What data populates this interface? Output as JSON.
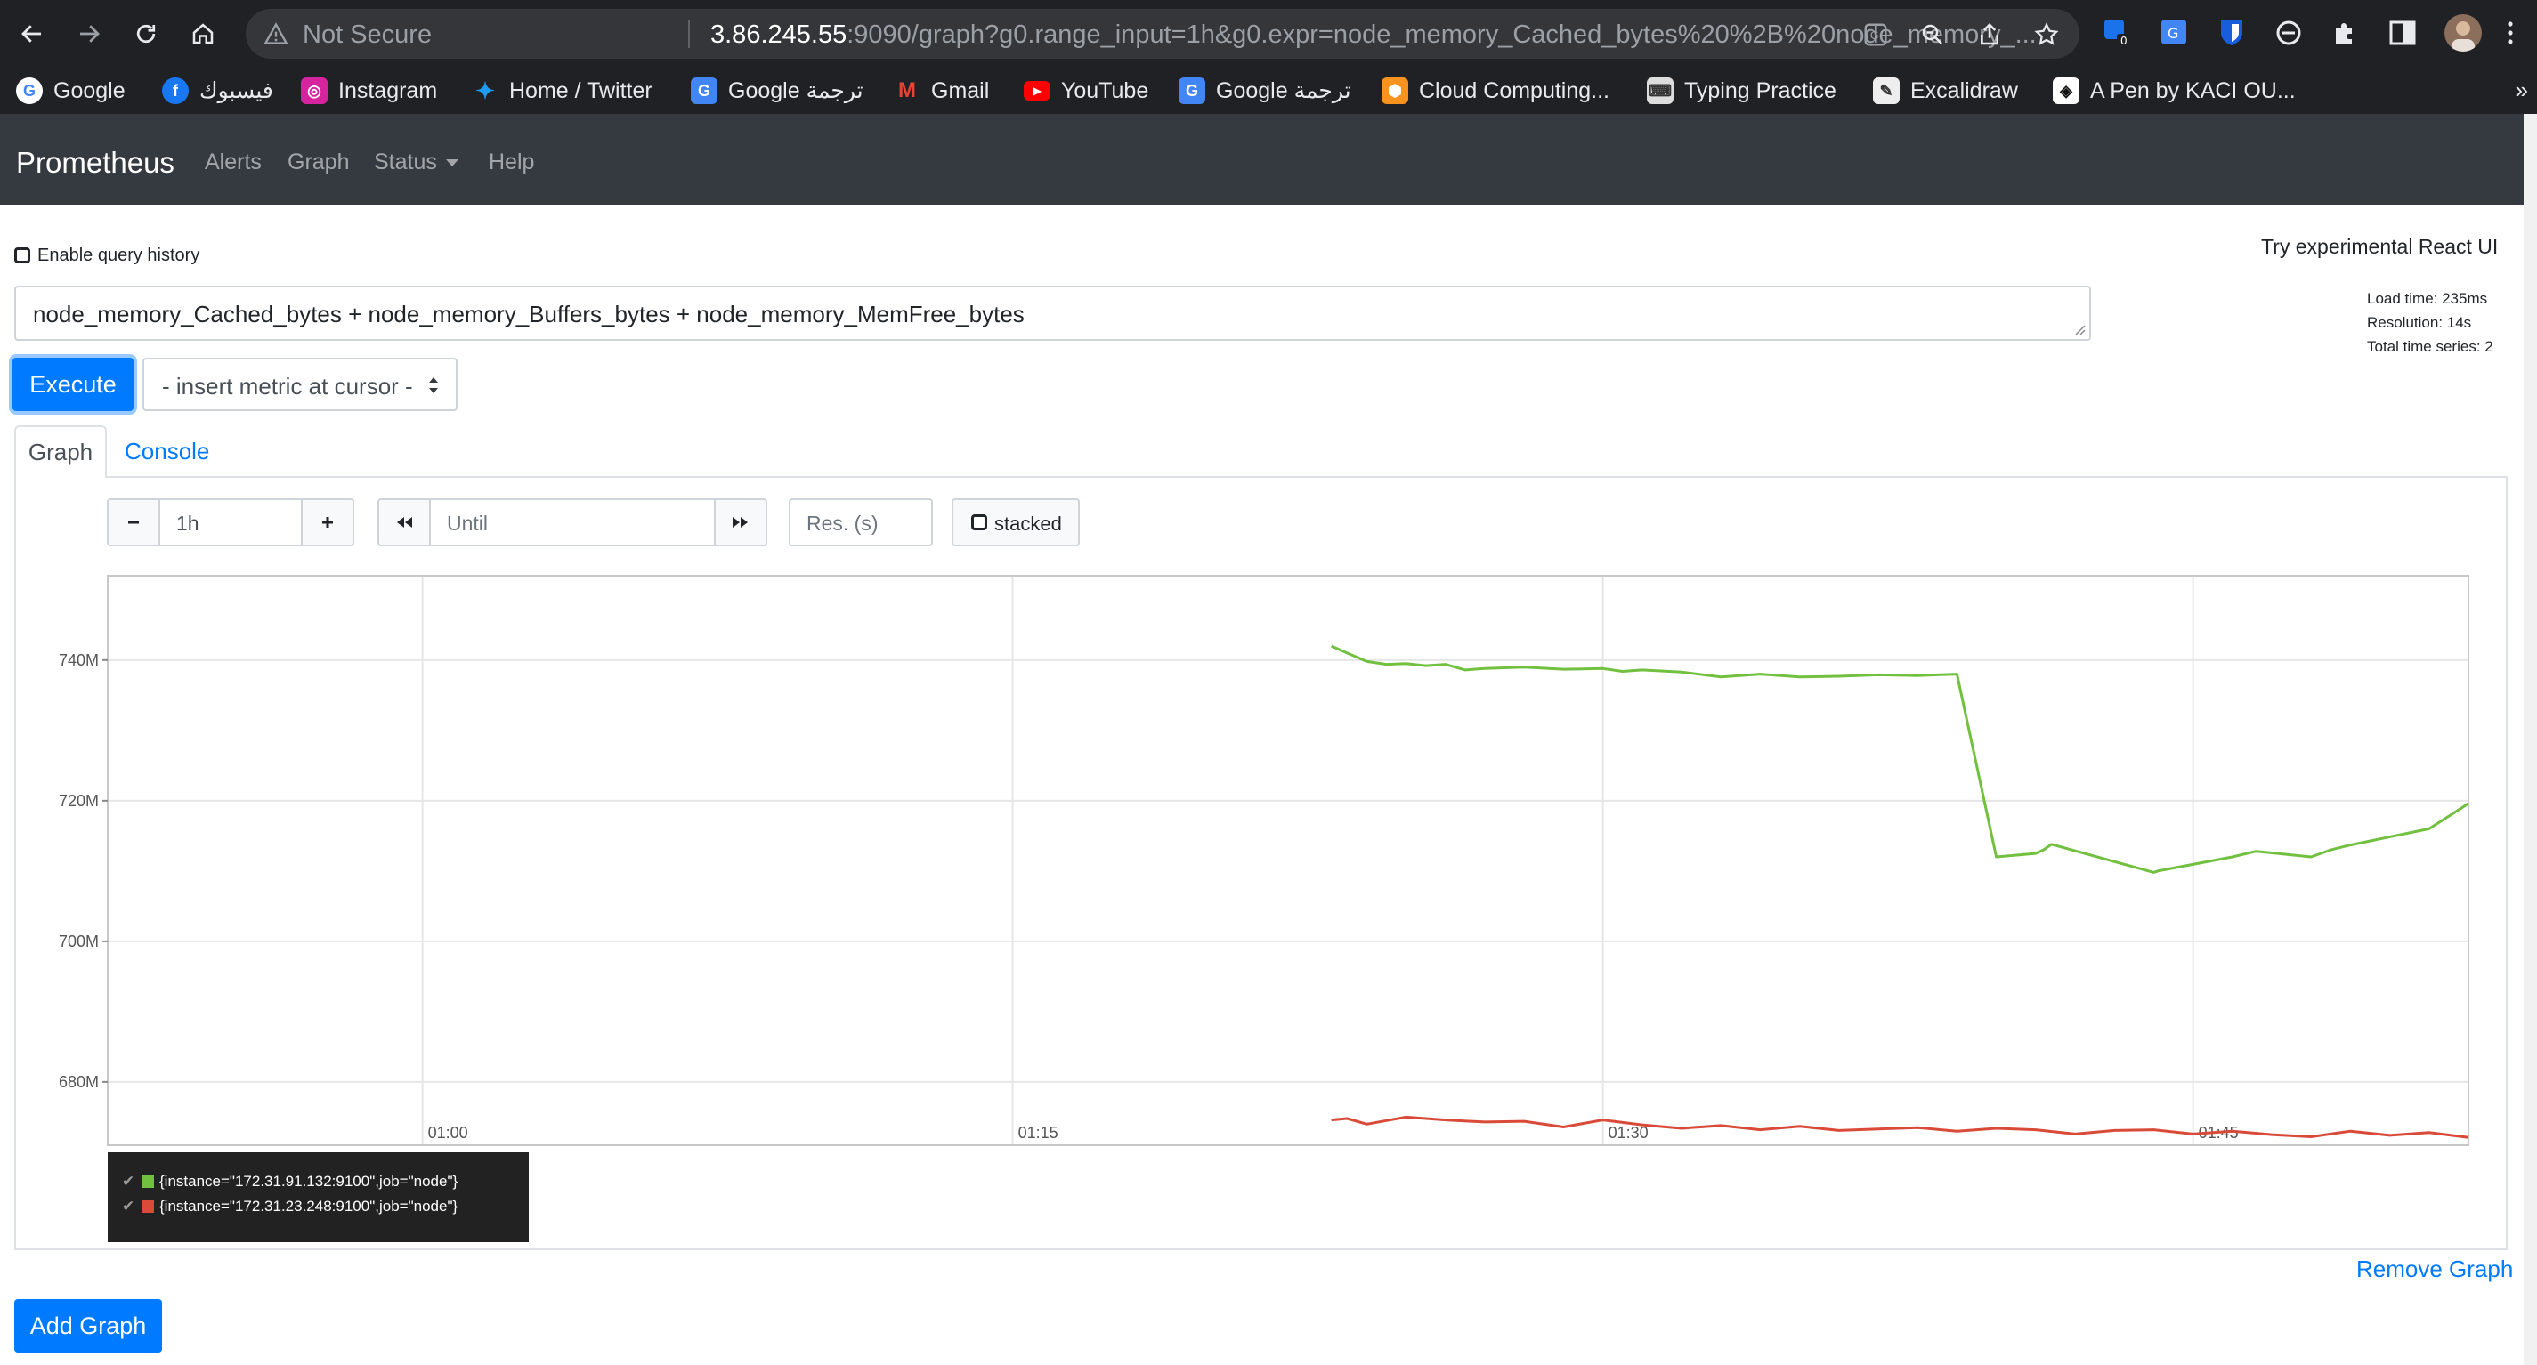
{
  "browser": {
    "not_secure": "Not Secure",
    "url_host": "3.86.245.55",
    "url_rest": ":9090/graph?g0.range_input=1h&g0.expr=node_memory_Cached_bytes%20%2B%20node_memory_...",
    "ext_badge": "0",
    "bookmarks": [
      {
        "label": "Google",
        "icon": "google-icon",
        "color": "#ffffff"
      },
      {
        "label": "فيسبوك",
        "icon": "facebook-icon",
        "color": "#1877f2"
      },
      {
        "label": "Instagram",
        "icon": "instagram-icon",
        "color": "#d6249f"
      },
      {
        "label": "Home / Twitter",
        "icon": "twitter-icon",
        "color": "#1d9bf0"
      },
      {
        "label": "Google ترجمة",
        "icon": "translate-icon",
        "color": "#4285f4"
      },
      {
        "label": "Gmail",
        "icon": "gmail-icon",
        "color": "#ea4335"
      },
      {
        "label": "YouTube",
        "icon": "youtube-icon",
        "color": "#ff0000"
      },
      {
        "label": "Google ترجمة",
        "icon": "translate-icon",
        "color": "#4285f4"
      },
      {
        "label": "Cloud Computing...",
        "icon": "aws-icon",
        "color": "#f7931e"
      },
      {
        "label": "Typing Practice",
        "icon": "keyboard-icon",
        "color": "#dddddd"
      },
      {
        "label": "Excalidraw",
        "icon": "excalidraw-icon",
        "color": "#eeeeee"
      },
      {
        "label": "A Pen by KACI OU...",
        "icon": "codepen-icon",
        "color": "#ffffff"
      }
    ],
    "more": "»"
  },
  "navbar": {
    "brand": "Prometheus",
    "links": [
      "Alerts",
      "Graph",
      "Status",
      "Help"
    ]
  },
  "page": {
    "query_history_label": "Enable query history",
    "react_ui_link": "Try experimental React UI",
    "load_time": "Load time: 235ms",
    "resolution": "Resolution: 14s",
    "total_series": "Total time series: 2",
    "expression": "node_memory_Cached_bytes + node_memory_Buffers_bytes + node_memory_MemFree_bytes",
    "execute_label": "Execute",
    "insert_metric_label": "- insert metric at cursor -",
    "tab_graph": "Graph",
    "tab_console": "Console",
    "range_value": "1h",
    "until_placeholder": "Until",
    "res_placeholder": "Res. (s)",
    "stacked_label": "stacked",
    "remove_graph": "Remove Graph",
    "add_graph": "Add Graph"
  },
  "chart_data": {
    "type": "line",
    "xlabel": "",
    "ylabel": "",
    "x_ticks": [
      "01:00",
      "01:15",
      "01:30",
      "01:45"
    ],
    "y_ticks": [
      "680M",
      "700M",
      "720M",
      "740M"
    ],
    "xlim_minutes": [
      52,
      112
    ],
    "ylim_M": [
      671,
      752
    ],
    "grid": true,
    "legend_position": "bottom-left",
    "series": [
      {
        "name": "{instance=\"172.31.91.132:9100\",job=\"node\"}",
        "color": "#72c040",
        "x": [
          83.1,
          83.5,
          84,
          84.5,
          85,
          85.5,
          86,
          86.5,
          87,
          88,
          89,
          90,
          90.5,
          91,
          92,
          93,
          94,
          95,
          96,
          97,
          98,
          99,
          100,
          101,
          101.2,
          101.4,
          104,
          104.1,
          106,
          106.6,
          108,
          108.5,
          109,
          111,
          112
        ],
        "y": [
          742,
          741,
          739.8,
          739.4,
          739.5,
          739.2,
          739.4,
          738.6,
          738.8,
          739,
          738.7,
          738.8,
          738.4,
          738.6,
          738.3,
          737.6,
          738,
          737.6,
          737.7,
          737.9,
          737.8,
          738,
          712,
          712.5,
          713,
          713.8,
          709.8,
          710,
          712,
          712.8,
          712,
          713,
          713.7,
          716,
          719.6
        ]
      },
      {
        "name": "{instance=\"172.31.23.248:9100\",job=\"node\"}",
        "color": "#d94a38",
        "x": [
          83.1,
          83.5,
          84,
          84.5,
          85,
          86,
          87,
          88,
          89,
          90,
          91,
          92,
          93,
          94,
          95,
          96,
          97,
          98,
          99,
          100,
          101,
          102,
          103,
          104,
          105,
          106,
          107,
          108,
          109,
          110,
          111,
          112
        ],
        "y": [
          674.6,
          674.8,
          674,
          674.5,
          675,
          674.6,
          674.3,
          674.4,
          673.6,
          674.6,
          673.9,
          673.4,
          673.8,
          673.2,
          673.7,
          673.1,
          673.3,
          673.5,
          673,
          673.4,
          673.2,
          672.6,
          673.1,
          673.2,
          672.6,
          673,
          672.5,
          672.2,
          673,
          672.4,
          672.8,
          672.1
        ]
      }
    ]
  }
}
